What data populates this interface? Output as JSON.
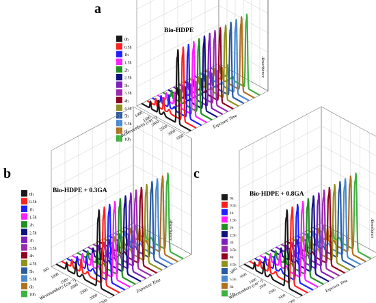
{
  "chart_data": [
    {
      "type": "3d-waterfall-line",
      "panel_label": "a",
      "title": "Bio-HDPE",
      "xlabel": "Wavenumbers (cm⁻¹)",
      "ylabel": "Exposure Time",
      "zlabel": "Absorbance",
      "x_ticks": [
        "3500",
        "3000",
        "2500",
        "2000",
        "1500",
        "1000"
      ],
      "series": [
        {
          "name": "0h",
          "color": "#1a1a1a"
        },
        {
          "name": "0.5h",
          "color": "#ff2020"
        },
        {
          "name": "1h",
          "color": "#2020ff"
        },
        {
          "name": "1.5h",
          "color": "#ff20ff"
        },
        {
          "name": "2h",
          "color": "#209020"
        },
        {
          "name": "2.5h",
          "color": "#101080"
        },
        {
          "name": "3h",
          "color": "#8020c0"
        },
        {
          "name": "3.5h",
          "color": "#9a2ab0"
        },
        {
          "name": "4h",
          "color": "#900020"
        },
        {
          "name": "4.5h",
          "color": "#909020"
        },
        {
          "name": "5h",
          "color": "#2a5aa0"
        },
        {
          "name": "5.5h",
          "color": "#4a8ad0"
        },
        {
          "name": "6h",
          "color": "#b07020"
        },
        {
          "name": "10h",
          "color": "#40b040"
        }
      ]
    },
    {
      "type": "3d-waterfall-line",
      "panel_label": "b",
      "title": "Bio-HDPE + 0.3GA",
      "xlabel": "Wavenumbers (cm⁻¹)",
      "ylabel": "Exposure Time",
      "zlabel": "Absorbance",
      "x_ticks": [
        "3500",
        "3000",
        "2500",
        "2000",
        "1500",
        "1000",
        "500"
      ],
      "series": [
        {
          "name": "0h",
          "color": "#1a1a1a"
        },
        {
          "name": "0.5h",
          "color": "#ff2020"
        },
        {
          "name": "1h",
          "color": "#2020ff"
        },
        {
          "name": "1.5h",
          "color": "#ff20ff"
        },
        {
          "name": "2h",
          "color": "#209020"
        },
        {
          "name": "2.5h",
          "color": "#101080"
        },
        {
          "name": "3h",
          "color": "#8020c0"
        },
        {
          "name": "3.5h",
          "color": "#9a2ab0"
        },
        {
          "name": "4h",
          "color": "#900020"
        },
        {
          "name": "4.5h",
          "color": "#909020"
        },
        {
          "name": "5h",
          "color": "#2a5aa0"
        },
        {
          "name": "5.5h",
          "color": "#4a8ad0"
        },
        {
          "name": "6h",
          "color": "#b07020"
        },
        {
          "name": "10h",
          "color": "#40b040"
        }
      ]
    },
    {
      "type": "3d-waterfall-line",
      "panel_label": "c",
      "title": "Bio-HDPE + 0.8GA",
      "xlabel": "Wavenumbers (cm⁻¹)",
      "ylabel": "Exposure Time",
      "zlabel": "Absorbance",
      "x_ticks": [
        "3500",
        "3000",
        "2500",
        "2000",
        "1500",
        "1000",
        "500"
      ],
      "series": [
        {
          "name": "0h",
          "color": "#1a1a1a"
        },
        {
          "name": "0.5h",
          "color": "#ff2020"
        },
        {
          "name": "1h",
          "color": "#2020ff"
        },
        {
          "name": "1.5h",
          "color": "#ff20ff"
        },
        {
          "name": "2h",
          "color": "#209020"
        },
        {
          "name": "2.5h",
          "color": "#101080"
        },
        {
          "name": "3h",
          "color": "#8020c0"
        },
        {
          "name": "3.5h",
          "color": "#9a2ab0"
        },
        {
          "name": "4h",
          "color": "#900020"
        },
        {
          "name": "4.5h",
          "color": "#909020"
        },
        {
          "name": "5h",
          "color": "#2a5aa0"
        },
        {
          "name": "5.5h",
          "color": "#4a8ad0"
        },
        {
          "name": "6h",
          "color": "#b07020"
        },
        {
          "name": "10h",
          "color": "#40b040"
        }
      ]
    }
  ]
}
